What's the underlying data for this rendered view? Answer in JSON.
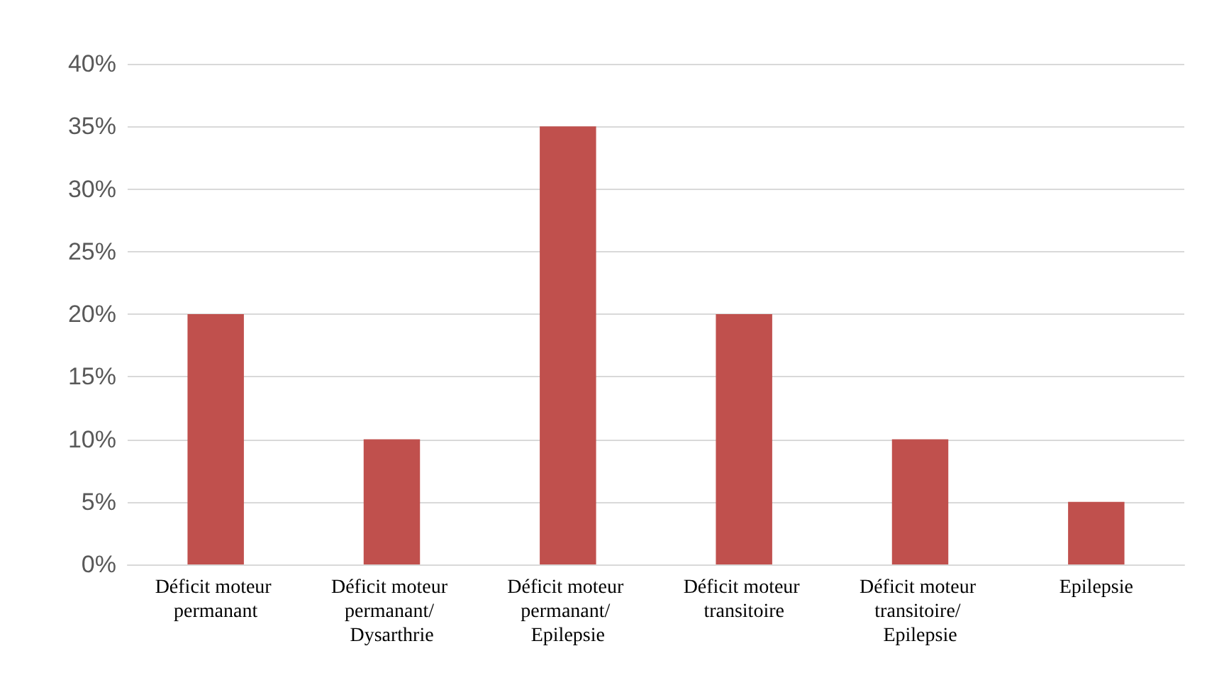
{
  "chart_data": {
    "type": "bar",
    "categories": [
      "Déficit moteur permanant",
      "Déficit moteur permanant/ Dysarthrie",
      "Déficit moteur permanant/ Epilepsie",
      "Déficit moteur transitoire",
      "Déficit moteur transitoire/ Epilepsie",
      "Epilepsie"
    ],
    "values": [
      20,
      10,
      35,
      20,
      10,
      5
    ],
    "color": "#c0504d",
    "ylim": [
      0,
      40
    ],
    "yticks": [
      {
        "value": 0,
        "label": "0%"
      },
      {
        "value": 5,
        "label": "5%"
      },
      {
        "value": 10,
        "label": "10%"
      },
      {
        "value": 15,
        "label": "15%"
      },
      {
        "value": 20,
        "label": "20%"
      },
      {
        "value": 25,
        "label": "25%"
      },
      {
        "value": 30,
        "label": "30%"
      },
      {
        "value": 35,
        "label": "35%"
      },
      {
        "value": 40,
        "label": "40%"
      }
    ],
    "grid": true
  }
}
